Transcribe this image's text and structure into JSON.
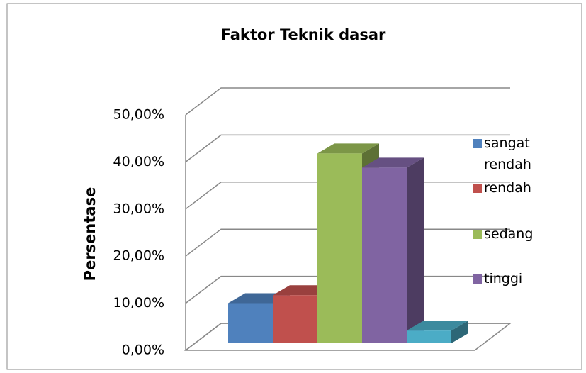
{
  "chart_data": {
    "type": "bar3d",
    "title": "Faktor Teknik dasar",
    "y_label": "Persentase",
    "categories": [
      "sangat rendah",
      "rendah",
      "sedang",
      "tinggi",
      null
    ],
    "values": [
      8.5,
      10.2,
      40.3,
      37.3,
      2.7
    ],
    "colors": [
      "#4f81bd",
      "#c0504d",
      "#9bbb59",
      "#8064a2",
      "#4bacc6"
    ],
    "ylim": [
      0,
      50
    ],
    "yticks": [
      {
        "value": 0,
        "label": "0,00%"
      },
      {
        "value": 10,
        "label": "10,00%"
      },
      {
        "value": 20,
        "label": "20,00%"
      },
      {
        "value": 30,
        "label": "30,00%"
      },
      {
        "value": 40,
        "label": "40,00%"
      },
      {
        "value": 50,
        "label": "50,00%"
      }
    ],
    "grid": true,
    "legend": "right"
  }
}
